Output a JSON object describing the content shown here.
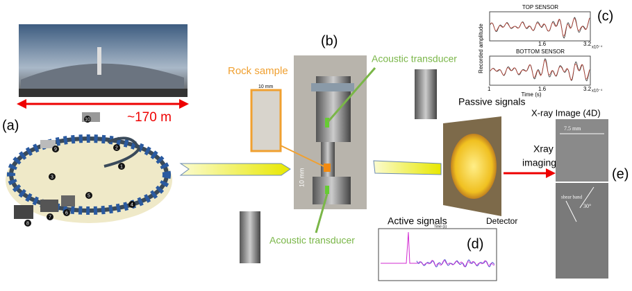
{
  "panel_labels": {
    "a": "(a)",
    "b": "(b)",
    "c": "(c)",
    "d": "(d)",
    "e": "(e)"
  },
  "facility": {
    "size": "~170 m",
    "ring_numbers": [
      "1",
      "2",
      "3",
      "4",
      "5",
      "6",
      "7",
      "8",
      "9",
      "10"
    ]
  },
  "setup": {
    "rock_sample": "Rock sample",
    "sample_scale": "10 mm",
    "rig_scale": "10 mm",
    "transducer_top": "Acoustic transducer",
    "transducer_bottom": "Acoustic transducer"
  },
  "passive": {
    "top_title": "TOP SENSOR",
    "bottom_title": "BOTTOM SENSOR",
    "ylabel": "Recorded amplitude",
    "xlabel": "Time (s)",
    "top_ticks": [
      "1.6",
      "3.2"
    ],
    "bottom_ticks": [
      "1",
      "1.6",
      "3.2"
    ],
    "top_exponent": "x10⁻⁴",
    "bottom_exponent": "x10⁻⁴",
    "caption": "Passive signals"
  },
  "xray": {
    "title": "X-ray Image (4D)",
    "arrow_line1": "Xray",
    "arrow_line2": "imaging",
    "detector": "Detector",
    "width": "7.5 mm",
    "band": "shear band",
    "angle": "30°"
  },
  "active": {
    "caption": "Active signals",
    "xlabel": "Time (s)"
  }
}
